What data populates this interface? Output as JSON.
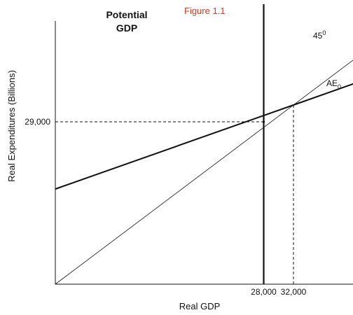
{
  "figure_label": "Figure 1.1",
  "colors": {
    "figure_label": "#e2331b",
    "ink": "#111111"
  },
  "chart_data": {
    "type": "line",
    "title": "",
    "xlabel": "Real GDP",
    "ylabel": "Real Expenditures (Billions)",
    "xlim": [
      0,
      40000
    ],
    "ylim": [
      0,
      50000
    ],
    "x_ticks": [
      {
        "value": 28000,
        "label": "28,000"
      },
      {
        "value": 32000,
        "label": "32,000"
      }
    ],
    "y_ticks": [
      {
        "value": 29000,
        "label": "29,000"
      }
    ],
    "series": [
      {
        "name_text": "45",
        "name_sup": "0",
        "kind": "reference",
        "x": [
          0,
          45000
        ],
        "y": [
          0,
          45000
        ]
      },
      {
        "name_text": "AE",
        "name_sub": "0",
        "kind": "primary",
        "x": [
          0,
          32000,
          42000
        ],
        "y": [
          17000,
          32000,
          36700
        ]
      }
    ],
    "vertical_line": {
      "name_line1": "Potential",
      "name_line2": "GDP",
      "x": 28000,
      "y_top": 50000
    },
    "guides": [
      {
        "from": [
          0,
          29000
        ],
        "to": [
          28000,
          29000
        ]
      },
      {
        "from": [
          28000,
          0
        ],
        "to": [
          28000,
          29000
        ]
      },
      {
        "from": [
          32000,
          0
        ],
        "to": [
          32000,
          32000
        ]
      }
    ],
    "grid": false,
    "legend": "none"
  }
}
